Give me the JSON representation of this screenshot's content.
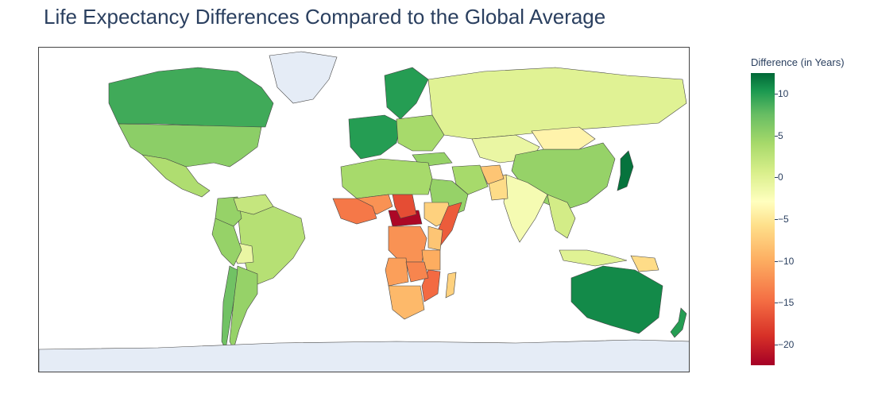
{
  "title": "Life Expectancy Differences Compared to the Global Average",
  "colorbar": {
    "title": "Difference (in Years)",
    "range": [
      -22.5,
      12.5
    ],
    "ticks": [
      {
        "value": 10,
        "label": "10"
      },
      {
        "value": 5,
        "label": "5"
      },
      {
        "value": 0,
        "label": "0"
      },
      {
        "value": -5,
        "label": "−5"
      },
      {
        "value": -10,
        "label": "−10"
      },
      {
        "value": -15,
        "label": "−15"
      },
      {
        "value": -20,
        "label": "−20"
      }
    ],
    "colorscale": "RdYlGn"
  },
  "chart_data": {
    "type": "choropleth",
    "projection": "equirectangular",
    "background_land": "#e5ecf6",
    "regions": [
      {
        "name": "Canada",
        "value": 9
      },
      {
        "name": "USA",
        "value": 5.5
      },
      {
        "name": "Mexico",
        "value": 3.5
      },
      {
        "name": "Brazil",
        "value": 3
      },
      {
        "name": "Argentina",
        "value": 5
      },
      {
        "name": "Bolivia",
        "value": -1
      },
      {
        "name": "Chile",
        "value": 7
      },
      {
        "name": "Colombia",
        "value": 5
      },
      {
        "name": "Peru",
        "value": 5
      },
      {
        "name": "Venezuela",
        "value": 2
      },
      {
        "name": "Western Europe",
        "value": 10
      },
      {
        "name": "Scandinavia",
        "value": 10
      },
      {
        "name": "Eastern Europe",
        "value": 4
      },
      {
        "name": "Russia",
        "value": 0
      },
      {
        "name": "Kazakhstan",
        "value": -1
      },
      {
        "name": "China",
        "value": 5
      },
      {
        "name": "Mongolia",
        "value": -4
      },
      {
        "name": "Japan",
        "value": 12
      },
      {
        "name": "India",
        "value": -2
      },
      {
        "name": "Pakistan",
        "value": -6
      },
      {
        "name": "Afghanistan",
        "value": -8
      },
      {
        "name": "Iran",
        "value": 4
      },
      {
        "name": "Saudi Arabia",
        "value": 5
      },
      {
        "name": "Turkey",
        "value": 5
      },
      {
        "name": "Southeast Asia",
        "value": 1
      },
      {
        "name": "Indonesia",
        "value": 0
      },
      {
        "name": "Papua New Guinea",
        "value": -6
      },
      {
        "name": "Australia",
        "value": 11
      },
      {
        "name": "New Zealand",
        "value": 10
      },
      {
        "name": "North Africa",
        "value": 4
      },
      {
        "name": "Sahel",
        "value": -12
      },
      {
        "name": "West Africa",
        "value": -14
      },
      {
        "name": "Central African Republic",
        "value": -22
      },
      {
        "name": "Chad",
        "value": -17
      },
      {
        "name": "DR Congo",
        "value": -12
      },
      {
        "name": "Ethiopia",
        "value": -7
      },
      {
        "name": "Somalia",
        "value": -16
      },
      {
        "name": "Kenya",
        "value": -8
      },
      {
        "name": "Tanzania",
        "value": -10
      },
      {
        "name": "Angola",
        "value": -11
      },
      {
        "name": "Mozambique",
        "value": -15
      },
      {
        "name": "Zambia",
        "value": -13
      },
      {
        "name": "South Africa",
        "value": -9
      },
      {
        "name": "Madagascar",
        "value": -7
      },
      {
        "name": "Greenland",
        "value": null
      },
      {
        "name": "Antarctica",
        "value": null
      }
    ]
  }
}
